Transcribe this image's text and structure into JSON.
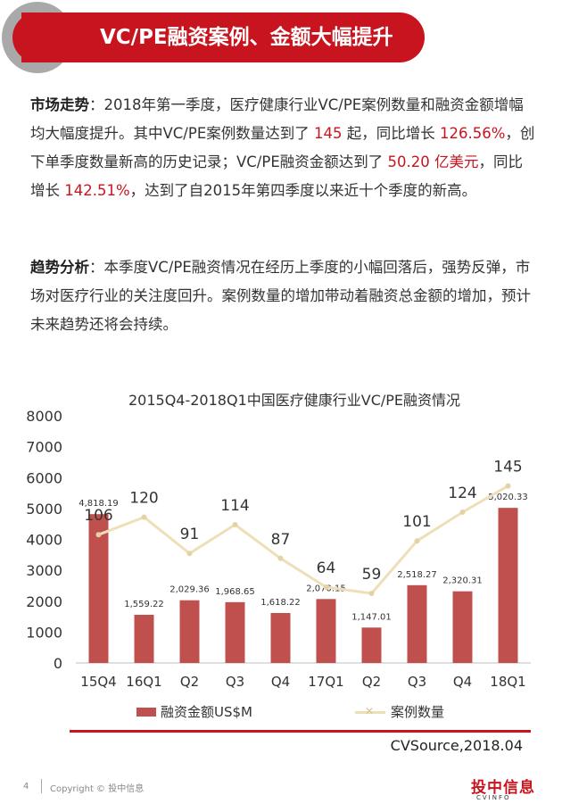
{
  "header": {
    "title": "VC/PE融资案例、金额大幅提升"
  },
  "market": {
    "label": "市场走势",
    "sep": "：",
    "t1": "2018年第一季度，医疗健康行业VC/PE案例数量和融资金额增幅均大幅度提升。其中VC/PE案例数量达到了",
    "v1": " 145 ",
    "t2": "起，同比增长",
    "v2": " 126.56%",
    "t3": "，创下单季度数量新高的历史记录；VC/PE融资金额达到了",
    "v3": " 50.20 亿美元",
    "t4": "，同比增长",
    "v4": " 142.51%",
    "t5": "，达到了自2015年第四季度以来近十个季度的新高。"
  },
  "trend": {
    "label": "趋势分析",
    "sep": "：",
    "text": "本季度VC/PE融资情况在经历上季度的小幅回落后，强势反弹，市场对医疗行业的关注度回升。案例数量的增加带动着融资总金额的增加，预计未来趋势还将会持续。"
  },
  "chart_data": {
    "type": "bar",
    "title": "2015Q4-2018Q1中国医疗健康行业VC/PE融资情况",
    "categories": [
      "15Q4",
      "16Q1",
      "Q2",
      "Q3",
      "Q4",
      "17Q1",
      "Q2",
      "Q3",
      "Q4",
      "18Q1"
    ],
    "ylim": [
      0,
      8000
    ],
    "yticks": [
      0,
      1000,
      2000,
      3000,
      4000,
      5000,
      6000,
      7000,
      8000
    ],
    "series": [
      {
        "name": "融资金额US$M",
        "kind": "bar",
        "values": [
          4818.19,
          1559.22,
          2029.36,
          1968.65,
          1618.22,
          2070.15,
          1147.01,
          2518.27,
          2320.31,
          5020.33
        ],
        "labels": [
          "4,818.19",
          "1,559.22",
          "2,029.36",
          "1,968.65",
          "1,618.22",
          "2,070.15",
          "1,147.01",
          "2,518.27",
          "2,320.31",
          "5,020.33"
        ],
        "color": "#c0504d"
      },
      {
        "name": "案例数量",
        "kind": "line",
        "values": [
          106,
          120,
          91,
          114,
          87,
          64,
          59,
          101,
          124,
          145
        ],
        "color": "#eedfb8"
      }
    ],
    "legend_position": "bottom"
  },
  "source": "CVSource,2018.04",
  "footer": {
    "page": "4",
    "copyright": "Copyright © 投中信息",
    "logo_zh": "投中信息",
    "logo_en": "CVINFO"
  }
}
